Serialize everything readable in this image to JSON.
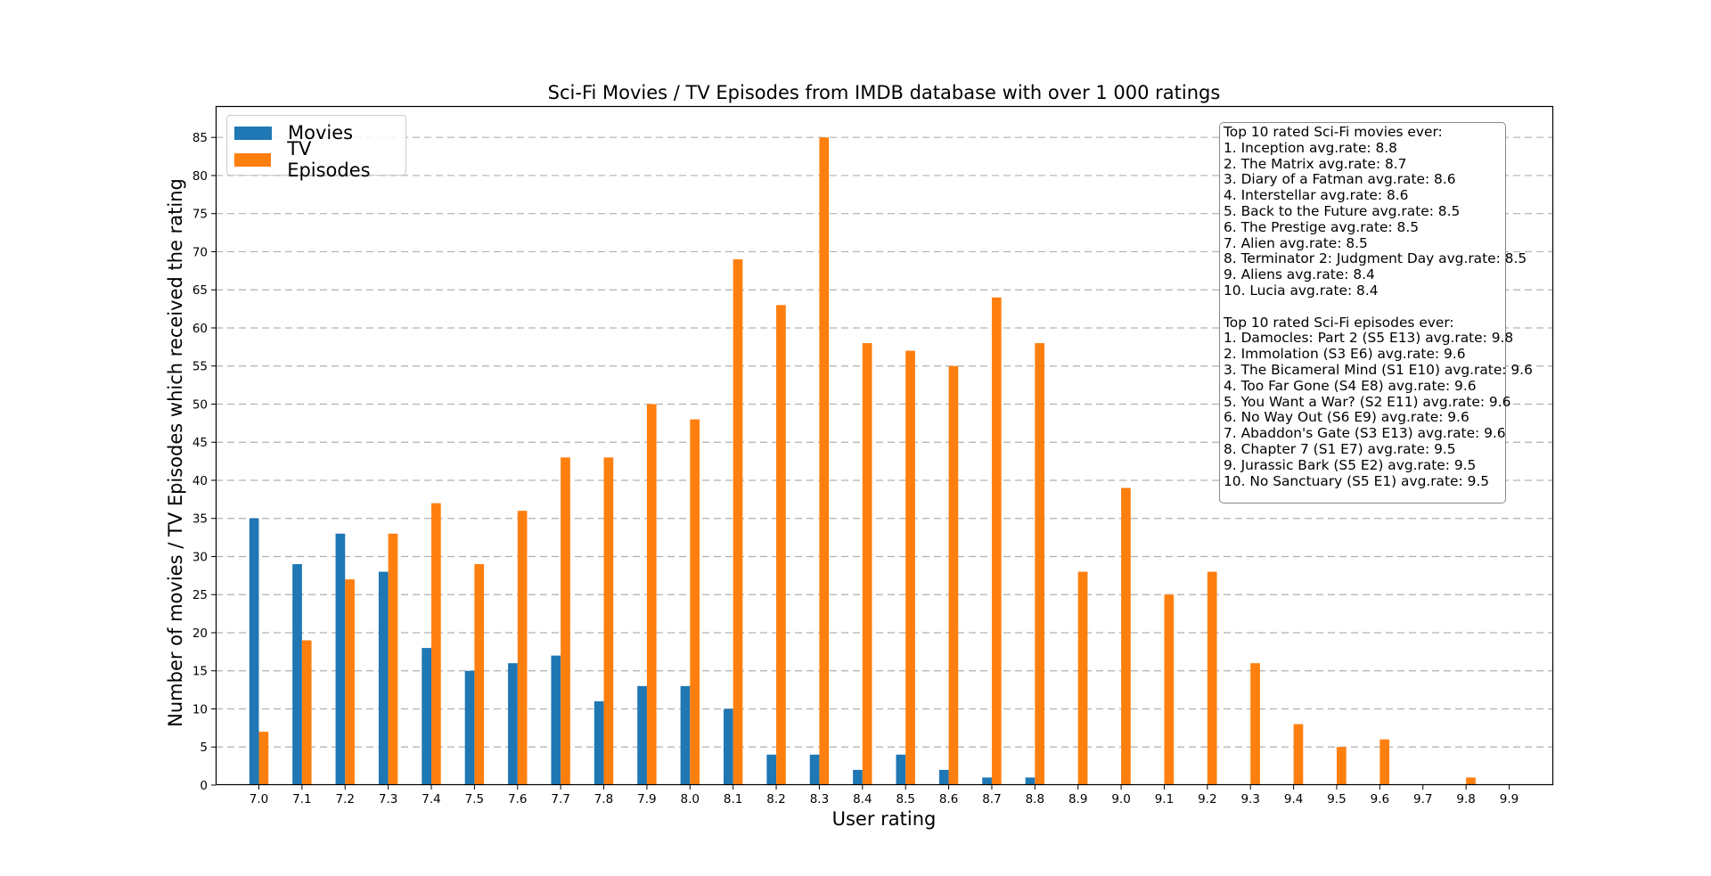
{
  "chart_data": {
    "type": "bar",
    "title": "Sci-Fi Movies / TV Episodes from IMDB database with over 1 000 ratings",
    "xlabel": "User rating",
    "ylabel": "Number of movies / TV Episodes which received the rating",
    "categories": [
      "7.0",
      "7.1",
      "7.2",
      "7.3",
      "7.4",
      "7.5",
      "7.6",
      "7.7",
      "7.8",
      "7.9",
      "8.0",
      "8.1",
      "8.2",
      "8.3",
      "8.4",
      "8.5",
      "8.6",
      "8.7",
      "8.8",
      "8.9",
      "9.0",
      "9.1",
      "9.2",
      "9.3",
      "9.4",
      "9.5",
      "9.6",
      "9.7",
      "9.8",
      "9.9"
    ],
    "series": [
      {
        "name": "Movies",
        "color": "#1f77b4",
        "values": [
          35,
          29,
          33,
          28,
          18,
          15,
          16,
          17,
          11,
          13,
          13,
          10,
          4,
          4,
          2,
          4,
          2,
          1,
          1,
          0,
          0,
          0,
          0,
          0,
          0,
          0,
          0,
          0,
          0,
          0
        ]
      },
      {
        "name": "TV Episodes",
        "color": "#ff7f0e",
        "values": [
          7,
          19,
          27,
          33,
          37,
          29,
          36,
          43,
          43,
          50,
          48,
          69,
          63,
          85,
          58,
          57,
          55,
          64,
          58,
          28,
          39,
          25,
          28,
          16,
          8,
          5,
          6,
          0,
          1,
          0
        ]
      }
    ],
    "ylim": [
      0,
      89
    ],
    "yticks": [
      0,
      5,
      10,
      15,
      20,
      25,
      30,
      35,
      40,
      45,
      50,
      55,
      60,
      65,
      70,
      75,
      80,
      85
    ],
    "grid": "y dashed",
    "legend_position": "top-left"
  },
  "annotation": {
    "movies_title": "Top 10 rated Sci-Fi movies ever:",
    "movies": [
      "1. Inception avg.rate: 8.8",
      "2. The Matrix avg.rate: 8.7",
      "3. Diary of a Fatman avg.rate: 8.6",
      "4. Interstellar avg.rate: 8.6",
      "5. Back to the Future avg.rate: 8.5",
      "6. The Prestige avg.rate: 8.5",
      "7. Alien avg.rate: 8.5",
      "8. Terminator 2: Judgment Day avg.rate: 8.5",
      "9. Aliens avg.rate: 8.4",
      "10. Lucia avg.rate: 8.4"
    ],
    "episodes_title": "Top 10 rated Sci-Fi episodes ever:",
    "episodes": [
      "1. Damocles: Part 2 (S5 E13) avg.rate: 9.8",
      "2. Immolation (S3 E6) avg.rate: 9.6",
      "3. The Bicameral Mind (S1 E10) avg.rate: 9.6",
      "4. Too Far Gone (S4 E8) avg.rate: 9.6",
      "5. You Want a War? (S2 E11) avg.rate: 9.6",
      "6. No Way Out (S6 E9) avg.rate: 9.6",
      "7. Abaddon's Gate (S3 E13) avg.rate: 9.6",
      "8. Chapter 7 (S1 E7) avg.rate: 9.5",
      "9. Jurassic Bark (S5 E2) avg.rate: 9.5",
      "10. No Sanctuary (S5 E1) avg.rate: 9.5"
    ]
  }
}
